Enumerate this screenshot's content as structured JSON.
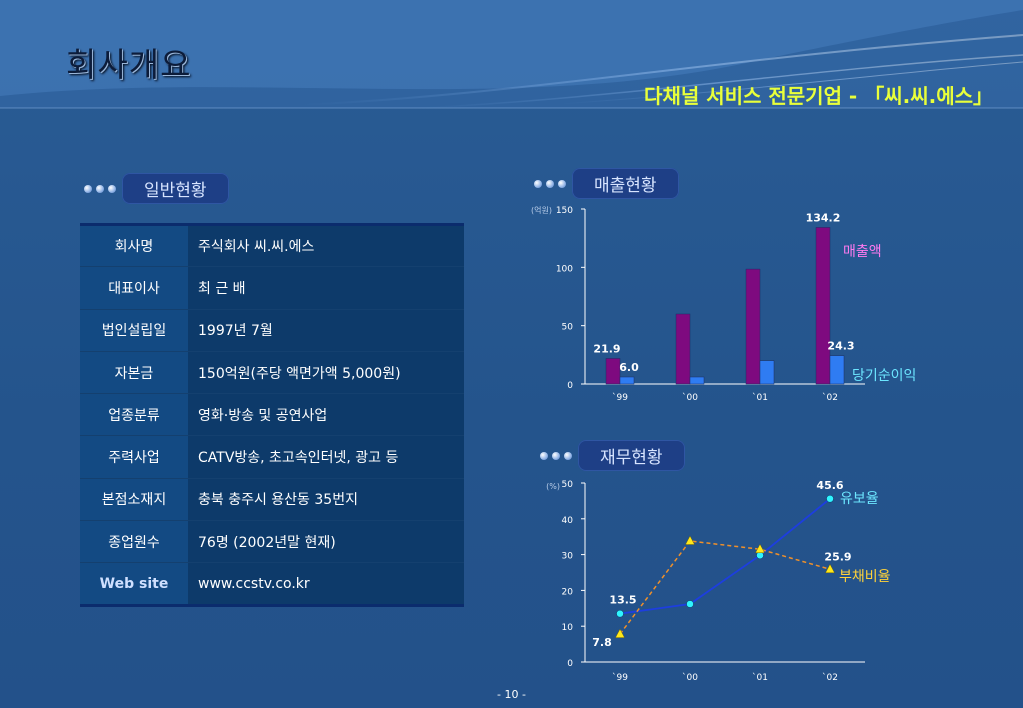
{
  "header": {
    "title": "회사개요",
    "subtitle": "다채널 서비스 전문기업 - 「씨.씨.에스」"
  },
  "sections": {
    "general": "일반현황",
    "sales": "매출현황",
    "finance": "재무현황"
  },
  "info_table": [
    {
      "key": "회사명",
      "value": "주식회사 씨.씨.에스"
    },
    {
      "key": "대표이사",
      "value": "최 근 배"
    },
    {
      "key": "법인설립일",
      "value": "1997년 7월"
    },
    {
      "key": "자본금",
      "value": "150억원(주당 액면가액 5,000원)"
    },
    {
      "key": "업종분류",
      "value": "영화·방송 및 공연사업"
    },
    {
      "key": "주력사업",
      "value": "CATV방송, 초고속인터넷, 광고 등"
    },
    {
      "key": "본점소재지",
      "value": "충북 충주시 용산동 35번지"
    },
    {
      "key": "종업원수",
      "value": "76명 (2002년말 현재)"
    },
    {
      "key": "Web site",
      "value": "www.ccstv.co.kr"
    }
  ],
  "page_number": "- 10 -",
  "colors": {
    "sales_bar": "#7e0a7f",
    "profit_bar": "#2f7cf2",
    "equity_line": "#1d3ee0",
    "debt_line": "#f0902a",
    "title_accent": "#e9ff3a"
  },
  "chart_data": [
    {
      "type": "bar",
      "unit_label": "(억원)",
      "categories": [
        "`99",
        "`00",
        "`01",
        "`02"
      ],
      "ylim": [
        0,
        150
      ],
      "yticks": [
        "0",
        "50",
        "100",
        "150"
      ],
      "series": [
        {
          "name": "매출액",
          "values": [
            21.9,
            60,
            98.5,
            134.2
          ],
          "labels": [
            "21.9",
            "",
            "",
            "134.2"
          ]
        },
        {
          "name": "당기순이익",
          "values": [
            6.0,
            6,
            20,
            24.3
          ],
          "labels": [
            "6.0",
            "",
            "",
            "24.3"
          ]
        }
      ]
    },
    {
      "type": "line",
      "unit_label": "(%)",
      "categories": [
        "`99",
        "`00",
        "`01",
        "`02"
      ],
      "ylim": [
        0,
        50
      ],
      "yticks": [
        "0",
        "10",
        "20",
        "30",
        "40",
        "50"
      ],
      "series": [
        {
          "name": "유보율",
          "values": [
            13.5,
            16.2,
            29.8,
            45.6
          ],
          "labels": [
            "13.5",
            "",
            "",
            "45.6"
          ]
        },
        {
          "name": "부채비율",
          "values": [
            7.8,
            33.8,
            31.5,
            25.9
          ],
          "labels": [
            "7.8",
            "",
            "",
            "25.9"
          ]
        }
      ]
    }
  ]
}
